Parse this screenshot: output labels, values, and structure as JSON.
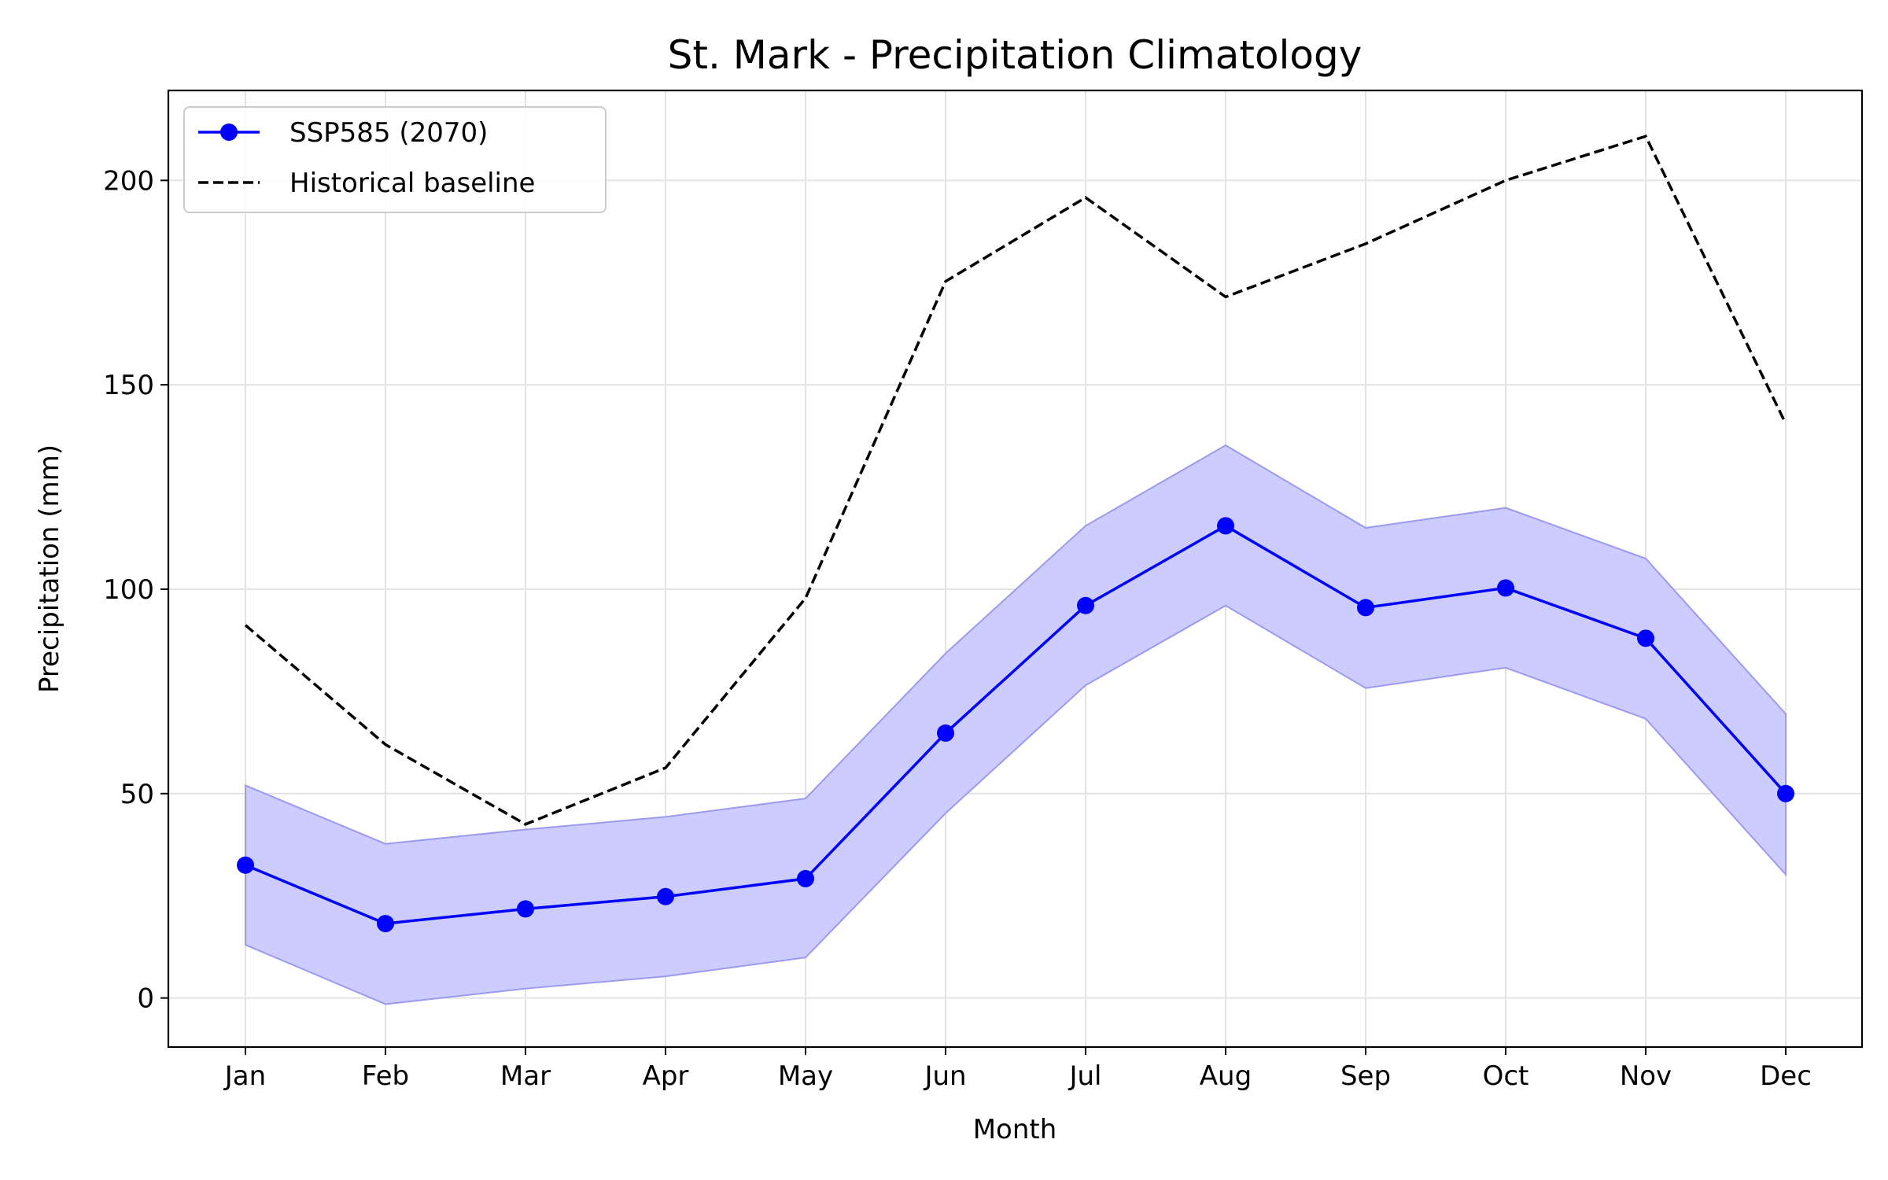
{
  "chart_data": {
    "type": "line",
    "title": "St. Mark - Precipitation Climatology",
    "xlabel": "Month",
    "ylabel": "Precipitation (mm)",
    "categories": [
      "Jan",
      "Feb",
      "Mar",
      "Apr",
      "May",
      "Jun",
      "Jul",
      "Aug",
      "Sep",
      "Oct",
      "Nov",
      "Dec"
    ],
    "ylim": [
      -12,
      222
    ],
    "yticks": [
      0,
      50,
      100,
      150,
      200
    ],
    "grid": true,
    "legend_position": "top-left",
    "series": [
      {
        "name": "SSP585 (2070)",
        "color": "#0000ff",
        "style": "solid-with-markers",
        "values": [
          32.5,
          18.2,
          21.8,
          24.8,
          29.2,
          64.8,
          96.0,
          115.5,
          95.5,
          100.3,
          88.0,
          50.0
        ],
        "band_lower": [
          13.0,
          -1.5,
          2.3,
          5.3,
          9.9,
          45.2,
          76.5,
          96.0,
          75.8,
          80.8,
          68.3,
          30.2
        ],
        "band_upper": [
          52.0,
          37.7,
          41.2,
          44.3,
          48.8,
          84.3,
          115.5,
          135.2,
          115.0,
          119.9,
          107.5,
          69.5
        ],
        "band_color": "#ccccff"
      },
      {
        "name": "Historical baseline",
        "color": "#000000",
        "style": "dashed",
        "values": [
          91.2,
          62.0,
          42.5,
          56.3,
          97.8,
          175.3,
          195.8,
          171.5,
          184.5,
          200.0,
          210.8,
          140.5
        ]
      }
    ]
  }
}
